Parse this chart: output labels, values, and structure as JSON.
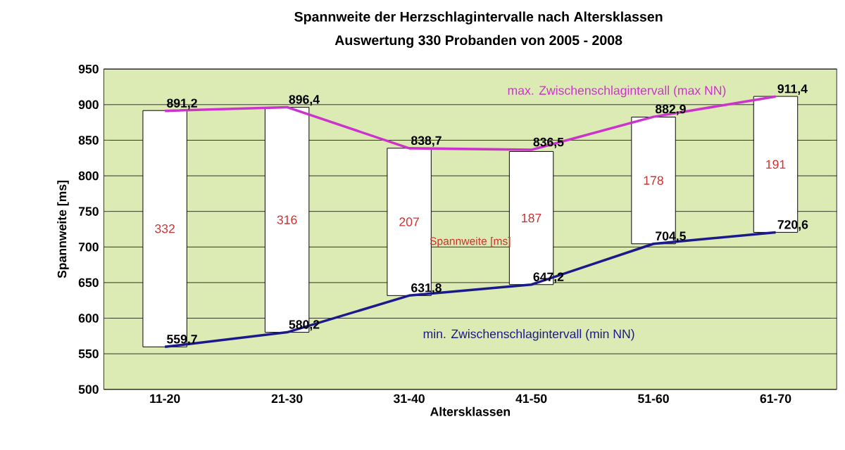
{
  "chart_data": {
    "type": "bar",
    "title": "Spannweite der Herzschlagintervalle nach Altersklassen",
    "subtitle": "Auswertung 330 Probanden von 2005 - 2008",
    "xlabel": "Altersklassen",
    "ylabel": "Spannweite [ms]",
    "categories": [
      "11-20",
      "21-30",
      "31-40",
      "41-50",
      "51-60",
      "61-70"
    ],
    "series": [
      {
        "name": "Spannweite [ms]",
        "type": "bar",
        "color": "#ffffff",
        "base": [
          559.7,
          580.2,
          631.8,
          647.2,
          704.5,
          720.6
        ],
        "values": [
          332,
          316,
          207,
          187,
          178,
          191
        ]
      },
      {
        "name": "max. Zwischenschlagintervall (max NN)",
        "type": "line",
        "color": "#cc33cc",
        "values": [
          891.2,
          896.4,
          838.7,
          836.5,
          882.9,
          911.4
        ],
        "value_labels": [
          "891,2",
          "896,4",
          "838,7",
          "836,5",
          "882,9",
          "911,4"
        ]
      },
      {
        "name": "min. Zwischenschlagintervall (min NN)",
        "type": "line",
        "color": "#1a1a8c",
        "values": [
          559.7,
          580.2,
          631.8,
          647.2,
          704.5,
          720.6
        ],
        "value_labels": [
          "559,7",
          "580,2",
          "631,8",
          "647,2",
          "704,5",
          "720,6"
        ]
      }
    ],
    "ylim": [
      500,
      950
    ],
    "yticks": [
      500,
      550,
      600,
      650,
      700,
      750,
      800,
      850,
      900,
      950
    ],
    "grid": "y",
    "data_labels": true,
    "legend": false,
    "marker": "none",
    "line_style": "solid"
  }
}
